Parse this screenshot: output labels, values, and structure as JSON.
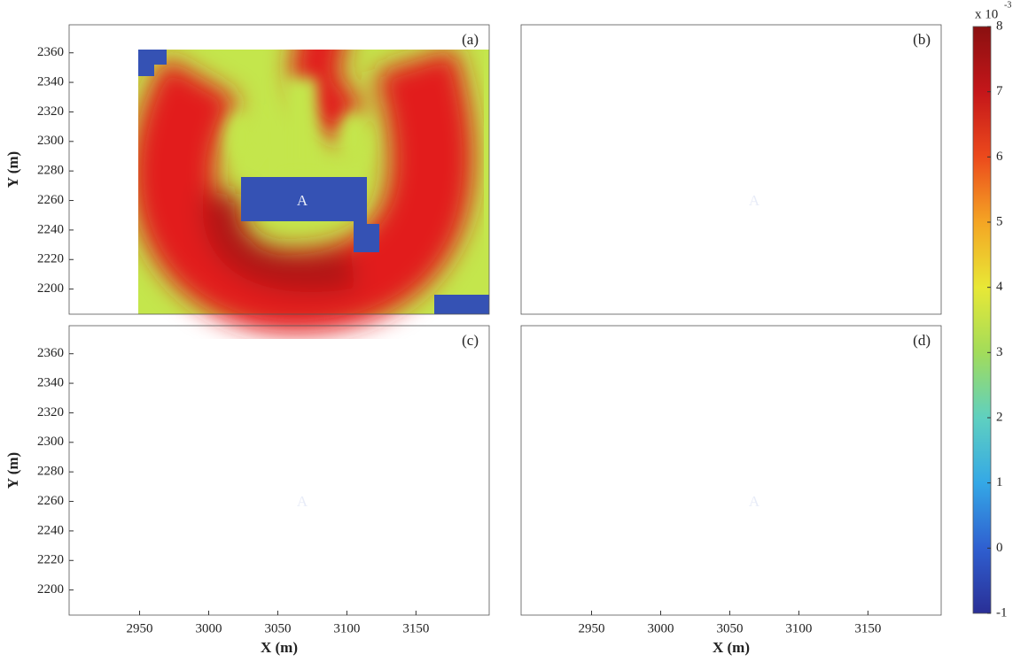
{
  "chart_data": [
    {
      "type": "heatmap",
      "panel_label": "(a)",
      "building_label": "A",
      "y_label": "Y (m)",
      "xlim": [
        2899,
        3203
      ],
      "ylim": [
        2183,
        2379
      ],
      "yticks": [
        2200,
        2220,
        2240,
        2260,
        2280,
        2300,
        2320,
        2340,
        2360
      ],
      "background_color": "#c4e64c",
      "plume_color": "#e21e1e",
      "core_color": "#b01414",
      "obstacle_color": "#3552b4"
    },
    {
      "type": "heatmap",
      "panel_label": "(b)",
      "building_label": "A",
      "xlim": [
        2899,
        3203
      ],
      "ylim": [
        2183,
        2379
      ],
      "background_color": "#a6dc62",
      "plume_color": "#ea4a1c",
      "core_color": "#e02a1a",
      "obstacle_color": "#3552b4"
    },
    {
      "type": "heatmap",
      "panel_label": "(c)",
      "building_label": "A",
      "y_label": "Y (m)",
      "x_label": "X (m)",
      "xlim": [
        2899,
        3203
      ],
      "ylim": [
        2183,
        2379
      ],
      "xticks": [
        2950,
        3000,
        3050,
        3100,
        3150
      ],
      "yticks": [
        2200,
        2220,
        2240,
        2260,
        2280,
        2300,
        2320,
        2340,
        2360
      ],
      "background_color": "#94d870",
      "plume_color": "#f0702a",
      "core_color": "#ea4a1c",
      "obstacle_color": "#3552b4"
    },
    {
      "type": "heatmap",
      "panel_label": "(d)",
      "building_label": "A",
      "x_label": "X (m)",
      "xlim": [
        2899,
        3203
      ],
      "ylim": [
        2183,
        2379
      ],
      "xticks": [
        2950,
        3000,
        3050,
        3100,
        3150
      ],
      "background_color": "#72d0a0",
      "plume_color": "#e8e43a",
      "core_color": "#f6c82a",
      "obstacle_color": "#3552b4"
    },
    {
      "type": "colorbar",
      "scale_label": "x 10",
      "scale_exponent": "-3",
      "ylim": [
        -1,
        8
      ],
      "yticks": [
        -1,
        0,
        1,
        2,
        3,
        4,
        5,
        6,
        7,
        8
      ],
      "colormap": [
        "#2a2f96",
        "#2f5fd0",
        "#34a8e6",
        "#5fd0c0",
        "#a2dc5a",
        "#e8e836",
        "#f4a524",
        "#ec4a1c",
        "#c4161a",
        "#8a1010"
      ]
    }
  ]
}
